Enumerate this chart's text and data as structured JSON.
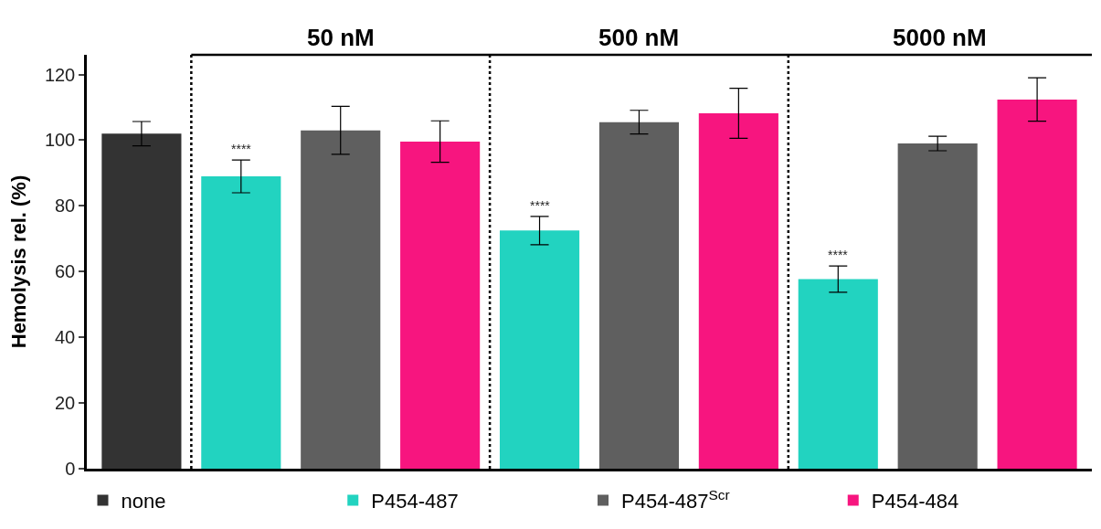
{
  "chart_data": {
    "type": "bar",
    "ylabel": "Hemolysis rel. (%)",
    "categories": [
      null,
      null,
      null,
      null,
      null,
      null,
      null,
      null,
      null,
      null
    ],
    "ylim": [
      0,
      126
    ],
    "yticks": [
      0,
      20,
      40,
      60,
      80,
      100,
      120
    ],
    "tick_labels": "y",
    "series": [
      {
        "name": "none",
        "color": "#333333",
        "values": [
          102,
          null,
          null,
          null,
          null,
          null,
          null,
          null,
          null,
          null
        ],
        "errors": [
          3.7,
          null,
          null,
          null,
          null,
          null,
          null,
          null,
          null,
          null
        ]
      },
      {
        "name": "P454-487",
        "color": "#22d3c0",
        "values": [
          null,
          89,
          null,
          null,
          72.5,
          null,
          null,
          57.7,
          null,
          null
        ],
        "errors": [
          null,
          5,
          null,
          null,
          4.3,
          null,
          null,
          4,
          null,
          null
        ],
        "value_labels": [
          null,
          "****",
          null,
          null,
          "****",
          null,
          null,
          "****",
          null,
          null
        ]
      },
      {
        "name": "P454-487$^{Scr}$",
        "color": "#5f5f5f",
        "values": [
          null,
          null,
          103,
          null,
          null,
          105.5,
          null,
          null,
          99,
          null
        ],
        "errors": [
          null,
          null,
          7.3,
          null,
          null,
          3.6,
          null,
          null,
          2.2,
          null
        ]
      },
      {
        "name": "P454-484",
        "color": "#f7157f",
        "values": [
          null,
          null,
          null,
          99.6,
          null,
          null,
          108.2,
          null,
          null,
          112.4
        ],
        "errors": [
          null,
          null,
          null,
          6.3,
          null,
          null,
          7.6,
          null,
          null,
          6.6
        ]
      }
    ],
    "annotations": [
      "50 nM",
      "500 nM",
      "5000 nM"
    ],
    "legend": "bottom"
  }
}
